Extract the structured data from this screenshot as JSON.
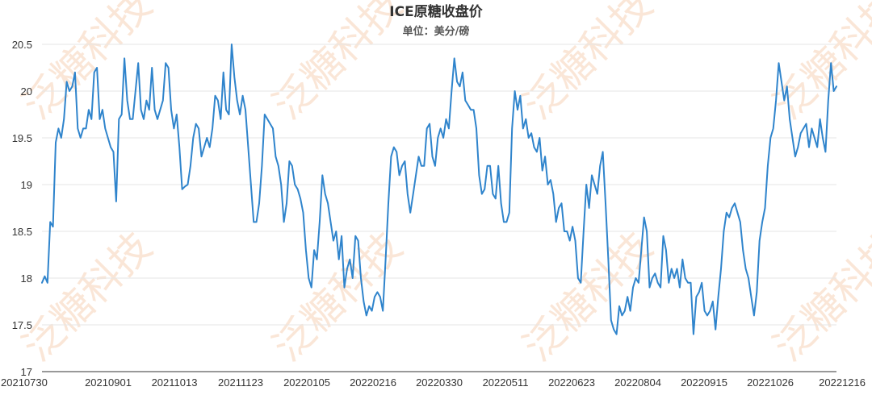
{
  "watermark": "泛糖科技",
  "chart_data": {
    "type": "line",
    "title": "ICE原糖收盘价",
    "subtitle": "单位：美分/磅",
    "xlabel": "",
    "ylabel": "",
    "ylim": [
      17,
      20.5
    ],
    "yticks": [
      17,
      17.5,
      18,
      18.5,
      19,
      19.5,
      20,
      20.5
    ],
    "ytick_labels": [
      "17",
      "17.5",
      "18",
      "18.5",
      "19",
      "19.5",
      "20",
      "20.5"
    ],
    "xtick_labels": [
      "20210730",
      "20210901",
      "20211013",
      "20211123",
      "20220105",
      "20220216",
      "20220330",
      "20220511",
      "20220623",
      "20220804",
      "20220915",
      "20221026",
      "20221216"
    ],
    "grid": true,
    "legend": "none",
    "series": [
      {
        "color": "#2f84cc",
        "values": [
          17.95,
          18.02,
          17.95,
          18.6,
          18.55,
          19.45,
          19.6,
          19.5,
          19.7,
          20.1,
          20.0,
          20.05,
          20.2,
          19.6,
          19.5,
          19.6,
          19.6,
          19.8,
          19.7,
          20.2,
          20.25,
          19.7,
          19.8,
          19.6,
          19.5,
          19.4,
          19.35,
          18.82,
          19.7,
          19.75,
          20.35,
          19.9,
          19.7,
          19.7,
          20.0,
          20.3,
          19.8,
          19.7,
          19.9,
          19.8,
          20.25,
          19.8,
          19.7,
          19.8,
          19.9,
          20.3,
          20.25,
          19.8,
          19.6,
          19.75,
          19.4,
          18.95,
          18.98,
          19.0,
          19.2,
          19.5,
          19.65,
          19.6,
          19.3,
          19.4,
          19.5,
          19.4,
          19.6,
          19.95,
          19.9,
          19.7,
          20.2,
          19.8,
          19.75,
          20.5,
          20.15,
          19.9,
          19.75,
          19.95,
          19.8,
          19.4,
          19.0,
          18.6,
          18.6,
          18.8,
          19.2,
          19.75,
          19.7,
          19.65,
          19.6,
          19.3,
          19.2,
          19.0,
          18.6,
          18.8,
          19.25,
          19.2,
          19.0,
          18.95,
          18.85,
          18.7,
          18.3,
          18.0,
          17.9,
          18.3,
          18.2,
          18.6,
          19.1,
          18.9,
          18.8,
          18.6,
          18.4,
          18.5,
          18.2,
          18.45,
          17.9,
          18.1,
          18.2,
          18.0,
          18.45,
          18.4,
          18.0,
          17.75,
          17.6,
          17.7,
          17.65,
          17.8,
          17.85,
          17.8,
          17.65,
          18.2,
          18.8,
          19.3,
          19.4,
          19.35,
          19.1,
          19.2,
          19.25,
          18.9,
          18.7,
          18.9,
          19.1,
          19.3,
          19.2,
          19.2,
          19.6,
          19.65,
          19.3,
          19.2,
          19.5,
          19.6,
          19.5,
          19.7,
          19.6,
          20.0,
          20.35,
          20.1,
          20.05,
          20.2,
          19.9,
          19.85,
          19.8,
          19.8,
          19.6,
          19.1,
          18.9,
          18.95,
          19.2,
          19.2,
          18.9,
          18.85,
          19.2,
          18.8,
          18.6,
          18.6,
          18.7,
          19.6,
          20.0,
          19.8,
          19.95,
          19.6,
          19.7,
          19.5,
          19.55,
          19.4,
          19.35,
          19.5,
          19.15,
          19.3,
          19.0,
          19.05,
          18.9,
          18.6,
          18.75,
          18.8,
          18.5,
          18.5,
          18.4,
          18.55,
          18.4,
          18.0,
          17.95,
          18.5,
          19.0,
          18.75,
          19.1,
          19.0,
          18.9,
          19.2,
          19.35,
          18.8,
          18.2,
          17.55,
          17.45,
          17.4,
          17.7,
          17.6,
          17.65,
          17.8,
          17.65,
          17.9,
          18.0,
          17.95,
          18.3,
          18.65,
          18.5,
          17.9,
          18.0,
          18.05,
          17.95,
          17.9,
          18.45,
          18.3,
          17.95,
          18.1,
          18.0,
          18.1,
          17.9,
          18.2,
          18.0,
          17.95,
          17.95,
          17.4,
          17.8,
          17.85,
          17.95,
          17.65,
          17.6,
          17.65,
          17.75,
          17.45,
          17.8,
          18.1,
          18.5,
          18.7,
          18.65,
          18.75,
          18.8,
          18.7,
          18.6,
          18.3,
          18.1,
          18.0,
          17.8,
          17.6,
          17.85,
          18.4,
          18.6,
          18.75,
          19.2,
          19.5,
          19.6,
          19.9,
          20.3,
          20.1,
          19.9,
          20.05,
          19.7,
          19.5,
          19.3,
          19.4,
          19.55,
          19.6,
          19.65,
          19.4,
          19.6,
          19.5,
          19.4,
          19.7,
          19.5,
          19.35,
          19.9,
          20.3,
          20.0,
          20.05
        ]
      }
    ]
  }
}
